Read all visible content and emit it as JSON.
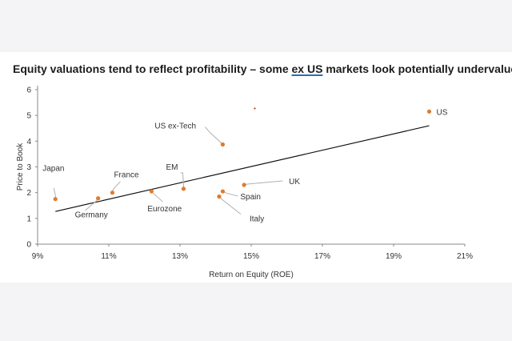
{
  "title": {
    "part1": "Equity valuations tend to reflect profitability – some ",
    "part2": "ex US",
    "part3": " markets look potentially undervalued"
  },
  "colors": {
    "point": "#e07b2c",
    "trend": "#111111",
    "axis": "#888888",
    "leader": "#b0b0b0"
  },
  "chart_data": {
    "type": "scatter",
    "xlabel": "Return on Equity (ROE)",
    "ylabel": "Price to Book",
    "xlim": [
      0.09,
      0.21
    ],
    "ylim": [
      0,
      6
    ],
    "x_ticks": [
      0.09,
      0.11,
      0.13,
      0.15,
      0.17,
      0.19,
      0.21
    ],
    "x_tick_labels": [
      "9%",
      "11%",
      "13%",
      "15%",
      "17%",
      "19%",
      "21%"
    ],
    "y_ticks": [
      0,
      1,
      2,
      3,
      4,
      5,
      6
    ],
    "y_tick_labels": [
      "0",
      "1",
      "2",
      "3",
      "4",
      "5",
      "6"
    ],
    "grid": false,
    "points": [
      {
        "label": "Japan",
        "x": 0.095,
        "y": 1.75
      },
      {
        "label": "Germany",
        "x": 0.107,
        "y": 1.78
      },
      {
        "label": "France",
        "x": 0.111,
        "y": 2.0
      },
      {
        "label": "Eurozone",
        "x": 0.122,
        "y": 2.05
      },
      {
        "label": "EM",
        "x": 0.131,
        "y": 2.15
      },
      {
        "label": "US ex-Tech",
        "x": 0.142,
        "y": 3.87
      },
      {
        "label": "Italy",
        "x": 0.141,
        "y": 1.85
      },
      {
        "label": "Spain",
        "x": 0.142,
        "y": 2.05
      },
      {
        "label": "UK",
        "x": 0.148,
        "y": 2.3
      },
      {
        "label": "US",
        "x": 0.2,
        "y": 5.15
      }
    ],
    "stray_point": {
      "x": 0.151,
      "y": 5.27
    },
    "trendline": {
      "x": [
        0.095,
        0.2
      ],
      "y": [
        1.27,
        4.6
      ]
    }
  }
}
